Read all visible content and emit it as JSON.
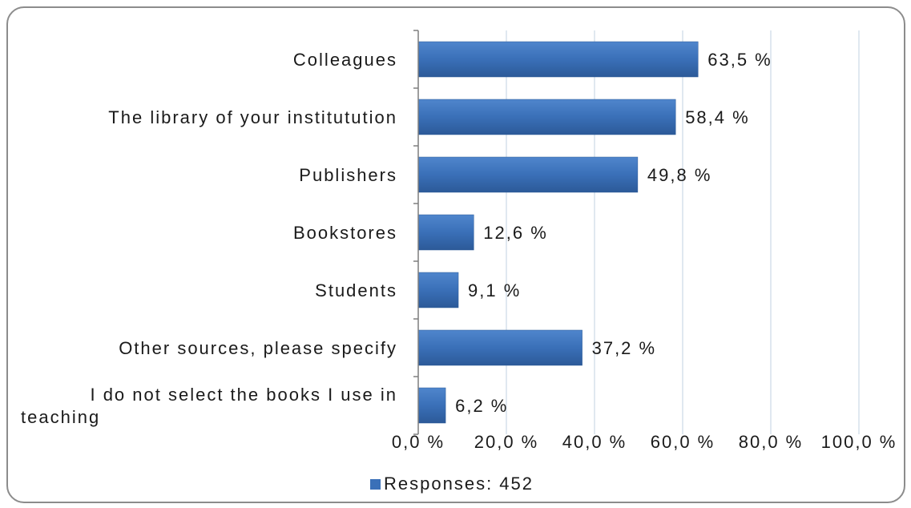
{
  "colors": {
    "bar": "#3a70b8",
    "bar_dark": "#2c5a98",
    "bar_light": "#4f86cc",
    "grid": "#d6e0ec",
    "axis": "#7f7f7f"
  },
  "chart_data": {
    "type": "bar",
    "orientation": "horizontal",
    "categories": [
      "Colleagues",
      "The library of your institutution",
      "Publishers",
      "Bookstores",
      "Students",
      "Other sources, please specify",
      "I do not select the books I use in teaching"
    ],
    "category_lines": [
      [
        "Colleagues"
      ],
      [
        "The library of your institutution"
      ],
      [
        "Publishers"
      ],
      [
        "Bookstores"
      ],
      [
        "Students"
      ],
      [
        "Other sources, please specify"
      ],
      [
        "I do not select the books I use in",
        "teaching"
      ]
    ],
    "values": [
      63.5,
      58.4,
      49.8,
      12.6,
      9.1,
      37.2,
      6.2
    ],
    "value_labels": [
      "63,5 %",
      "58,4 %",
      "49,8 %",
      "12,6 %",
      "9,1 %",
      "37,2 %",
      "6,2 %"
    ],
    "xlim": [
      0,
      100
    ],
    "x_ticks": [
      0,
      20,
      40,
      60,
      80,
      100
    ],
    "x_tick_labels": [
      "0,0 %",
      "20,0 %",
      "40,0 %",
      "60,0 %",
      "80,0 %",
      "100,0 %"
    ],
    "grid": true,
    "legend": {
      "position": "bottom",
      "entries": [
        "Responses: 452"
      ]
    },
    "series": [
      {
        "name": "Responses: 452",
        "values": [
          63.5,
          58.4,
          49.8,
          12.6,
          9.1,
          37.2,
          6.2
        ]
      }
    ]
  }
}
